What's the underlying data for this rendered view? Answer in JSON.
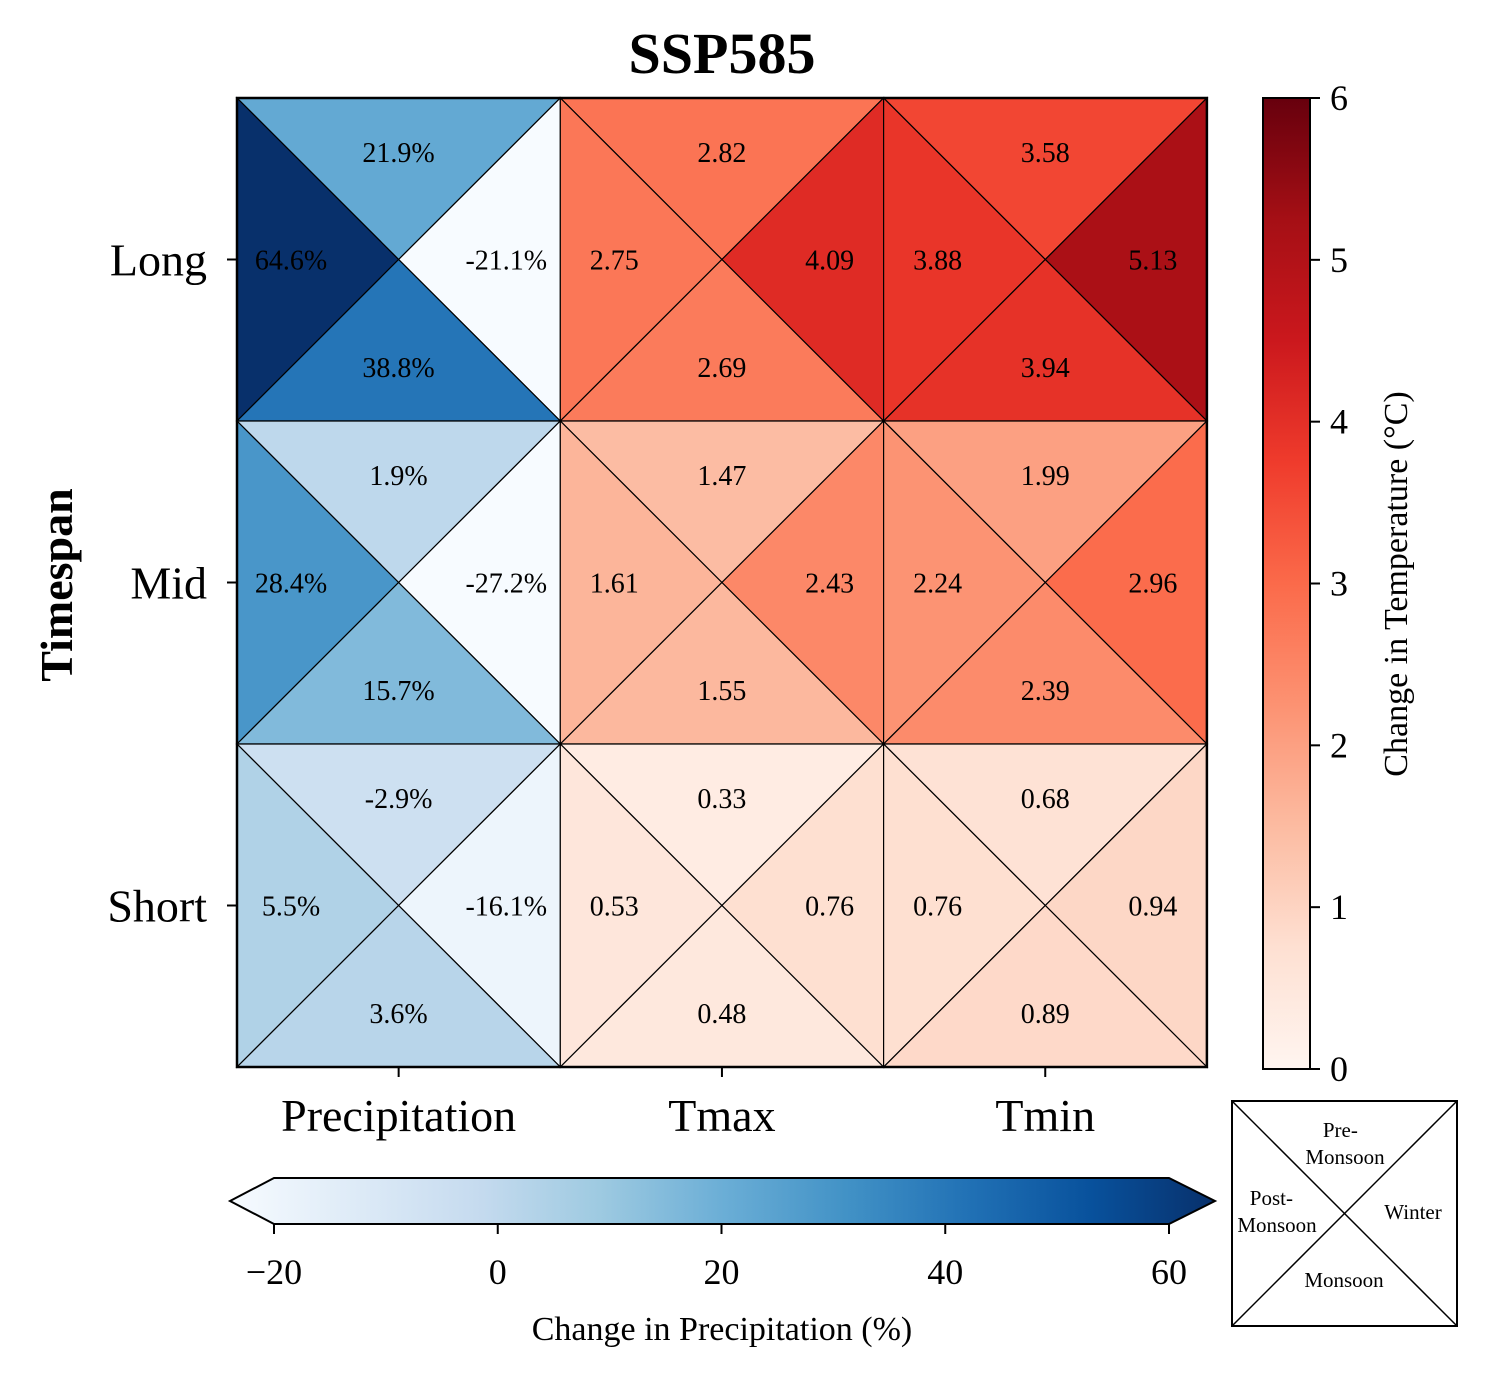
{
  "title": "SSP585",
  "chart_data": {
    "type": "heatmap",
    "title": "SSP585",
    "ylabel": "Timespan",
    "rows": [
      "Long",
      "Mid",
      "Short"
    ],
    "columns": [
      "Precipitation",
      "Tmax",
      "Tmin"
    ],
    "triangle_order": [
      "top",
      "left",
      "right",
      "bottom"
    ],
    "cells": [
      [
        {
          "top": {
            "value": 21.9,
            "label": "21.9%"
          },
          "left": {
            "value": 64.6,
            "label": "64.6%"
          },
          "right": {
            "value": -21.1,
            "label": "-21.1%"
          },
          "bottom": {
            "value": 38.8,
            "label": "38.8%"
          }
        },
        {
          "top": {
            "value": 2.82,
            "label": "2.82"
          },
          "left": {
            "value": 2.75,
            "label": "2.75"
          },
          "right": {
            "value": 4.09,
            "label": "4.09"
          },
          "bottom": {
            "value": 2.69,
            "label": "2.69"
          }
        },
        {
          "top": {
            "value": 3.58,
            "label": "3.58"
          },
          "left": {
            "value": 3.88,
            "label": "3.88"
          },
          "right": {
            "value": 5.13,
            "label": "5.13"
          },
          "bottom": {
            "value": 3.94,
            "label": "3.94"
          }
        }
      ],
      [
        {
          "top": {
            "value": 1.9,
            "label": "1.9%"
          },
          "left": {
            "value": 28.4,
            "label": "28.4%"
          },
          "right": {
            "value": -27.2,
            "label": "-27.2%"
          },
          "bottom": {
            "value": 15.7,
            "label": "15.7%"
          }
        },
        {
          "top": {
            "value": 1.47,
            "label": "1.47"
          },
          "left": {
            "value": 1.61,
            "label": "1.61"
          },
          "right": {
            "value": 2.43,
            "label": "2.43"
          },
          "bottom": {
            "value": 1.55,
            "label": "1.55"
          }
        },
        {
          "top": {
            "value": 1.99,
            "label": "1.99"
          },
          "left": {
            "value": 2.24,
            "label": "2.24"
          },
          "right": {
            "value": 2.96,
            "label": "2.96"
          },
          "bottom": {
            "value": 2.39,
            "label": "2.39"
          }
        }
      ],
      [
        {
          "top": {
            "value": -2.9,
            "label": "-2.9%"
          },
          "left": {
            "value": 5.5,
            "label": "5.5%"
          },
          "right": {
            "value": -16.1,
            "label": "-16.1%"
          },
          "bottom": {
            "value": 3.6,
            "label": "3.6%"
          }
        },
        {
          "top": {
            "value": 0.33,
            "label": "0.33"
          },
          "left": {
            "value": 0.53,
            "label": "0.53"
          },
          "right": {
            "value": 0.76,
            "label": "0.76"
          },
          "bottom": {
            "value": 0.48,
            "label": "0.48"
          }
        },
        {
          "top": {
            "value": 0.68,
            "label": "0.68"
          },
          "left": {
            "value": 0.76,
            "label": "0.76"
          },
          "right": {
            "value": 0.94,
            "label": "0.94"
          },
          "bottom": {
            "value": 0.89,
            "label": "0.89"
          }
        }
      ]
    ],
    "temperature_colorbar": {
      "label": "Change in Temperature (°C)",
      "range": [
        0,
        6
      ],
      "ticks": [
        "0",
        "1",
        "2",
        "3",
        "4",
        "5",
        "6"
      ],
      "colormap": "Reds",
      "stops": [
        "#fff5f0",
        "#fee0d2",
        "#fcbba1",
        "#fc9272",
        "#fb6a4a",
        "#ef3b2c",
        "#cb181d",
        "#a50f15",
        "#67000d"
      ]
    },
    "precipitation_colorbar": {
      "label": "Change in Precipitation (%)",
      "range": [
        -20,
        60
      ],
      "ticks": [
        "−20",
        "0",
        "20",
        "40",
        "60"
      ],
      "extend": "both",
      "colormap": "Blues",
      "stops": [
        "#f7fbff",
        "#deebf7",
        "#c6dbef",
        "#9ecae1",
        "#6baed6",
        "#4292c6",
        "#2171b5",
        "#08519c",
        "#08306b"
      ]
    },
    "legend": {
      "top": [
        "Pre-",
        "Monsoon"
      ],
      "left": [
        "Post-",
        "Monsoon"
      ],
      "right": [
        "Winter"
      ],
      "bottom": [
        "Monsoon"
      ]
    }
  }
}
